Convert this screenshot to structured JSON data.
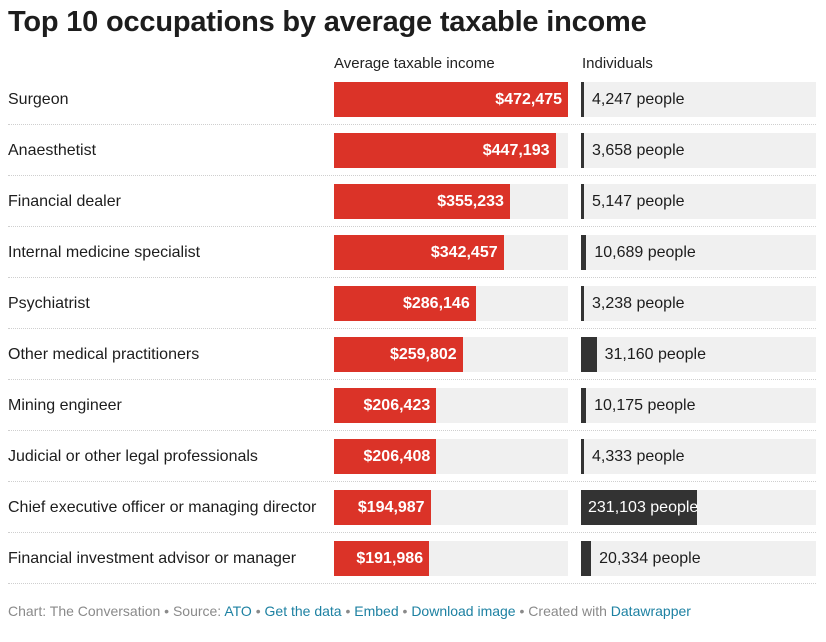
{
  "title": "Top 10 occupations by average taxable income",
  "columns": {
    "income": "Average taxable income",
    "individuals": "Individuals"
  },
  "colors": {
    "income_bar": "#db3328",
    "individuals_bar": "#333333",
    "bar_bg": "#f0f0f0",
    "link": "#1d81a2"
  },
  "chart_data": {
    "type": "bar",
    "title": "Top 10 occupations by average taxable income",
    "categories": [
      "Surgeon",
      "Anaesthetist",
      "Financial dealer",
      "Internal medicine specialist",
      "Psychiatrist",
      "Other medical practitioners",
      "Mining engineer",
      "Judicial or other legal professionals",
      "Chief executive officer or managing director",
      "Financial investment advisor or manager"
    ],
    "series": [
      {
        "name": "Average taxable income",
        "values": [
          472475,
          447193,
          355233,
          342457,
          286146,
          259802,
          206423,
          206408,
          194987,
          191986
        ],
        "labels": [
          "$472,475",
          "$447,193",
          "$355,233",
          "$342,457",
          "$286,146",
          "$259,802",
          "$206,423",
          "$206,408",
          "$194,987",
          "$191,986"
        ]
      },
      {
        "name": "Individuals",
        "values": [
          4247,
          3658,
          5147,
          10689,
          3238,
          31160,
          10175,
          4333,
          231103,
          20334
        ],
        "labels": [
          "4,247 people",
          "3,658 people",
          "5,147 people",
          "10,689 people",
          "3,238 people",
          "31,160 people",
          "10,175 people",
          "4,333 people",
          "231,103 people",
          "20,334 people"
        ]
      }
    ]
  },
  "footer": {
    "credit": "Chart: The Conversation",
    "source_label": "Source:",
    "source_link": "ATO",
    "get_data": "Get the data",
    "embed": "Embed",
    "download": "Download image",
    "created_with": "Created with",
    "datawrapper": "Datawrapper"
  }
}
